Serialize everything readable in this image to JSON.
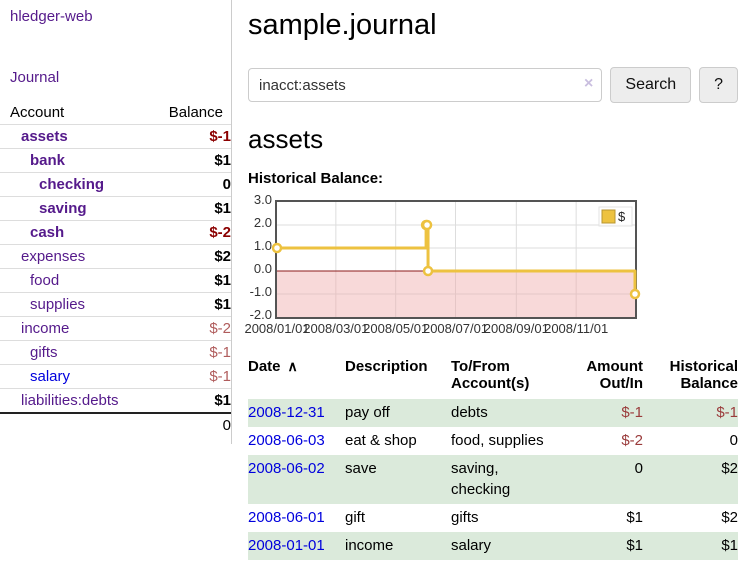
{
  "colors": {
    "link_purple": "#551a8b",
    "link_blue": "#0000dd",
    "negative_bold_red": "#8b0000",
    "negative_soft_red": "#b05c5c",
    "table_negative_red": "#9a3b3b",
    "row_stripe_green": "#dbeadb",
    "chart_series_yellow": "#edc240"
  },
  "sidebar": {
    "brand": "hledger-web",
    "nav_journal": "Journal",
    "accounts_table": {
      "headers": [
        "Account",
        "Balance"
      ],
      "rows": [
        {
          "name": "assets",
          "indent": 1,
          "bold": true,
          "balance": "$-1",
          "cls": "negb"
        },
        {
          "name": "bank",
          "indent": 2,
          "bold": true,
          "balance": "$1",
          "cls": "posb"
        },
        {
          "name": "checking",
          "indent": 3,
          "bold": true,
          "balance": "0",
          "cls": "posb"
        },
        {
          "name": "saving",
          "indent": 3,
          "bold": true,
          "balance": "$1",
          "cls": "posb"
        },
        {
          "name": "cash",
          "indent": 2,
          "bold": true,
          "balance": "$-2",
          "cls": "negb"
        },
        {
          "name": "expenses",
          "indent": 1,
          "bold": false,
          "balance": "$2",
          "cls": "posb"
        },
        {
          "name": "food",
          "indent": 2,
          "bold": false,
          "balance": "$1",
          "cls": "posb"
        },
        {
          "name": "supplies",
          "indent": 2,
          "bold": false,
          "balance": "$1",
          "cls": "posb"
        },
        {
          "name": "income",
          "indent": 1,
          "bold": false,
          "balance": "$-2",
          "cls": "neg"
        },
        {
          "name": "gifts",
          "indent": 2,
          "bold": false,
          "balance": "$-1",
          "cls": "neg"
        },
        {
          "name": "salary",
          "indent": 2,
          "bold": false,
          "blue": true,
          "balance": "$-1",
          "cls": "neg"
        },
        {
          "name": "liabilities:debts",
          "indent": 1,
          "bold": false,
          "balance": "$1",
          "cls": "posb"
        }
      ],
      "total": "0"
    }
  },
  "header": {
    "title": "sample.journal"
  },
  "search": {
    "value": "inacct:assets",
    "clear_icon": "×",
    "button_label": "Search",
    "help_label": "?"
  },
  "account_page": {
    "title": "assets",
    "chart_label": "Historical Balance:"
  },
  "chart_data": {
    "type": "line",
    "step": true,
    "title": "Historical Balance",
    "legend": {
      "position": "top-right"
    },
    "series": [
      {
        "name": "$",
        "color": "#edc240",
        "points": [
          {
            "x": "2008-01-01",
            "y": 1
          },
          {
            "x": "2008-06-01",
            "y": 2
          },
          {
            "x": "2008-06-02",
            "y": 2
          },
          {
            "x": "2008-06-03",
            "y": 0
          },
          {
            "x": "2008-12-31",
            "y": -1
          }
        ]
      }
    ],
    "x_range": [
      "2008-01-01",
      "2008-12-31"
    ],
    "ylim": [
      -2,
      3
    ],
    "y_ticks": [
      "3.0",
      "2.0",
      "1.0",
      "0.0",
      "-1.0",
      "-2.0"
    ],
    "x_ticks": [
      "2008/01/01",
      "2008/03/01",
      "2008/05/01",
      "2008/07/01",
      "2008/09/01",
      "2008/11/01"
    ],
    "grid": true,
    "negative_region_fill": "rgba(240,170,170,0.45)",
    "zero_line_color": "#8b1a1a",
    "plot_border_color": "#545454",
    "gridline_color": "#dddddd"
  },
  "register": {
    "sort_icon": "∧",
    "headers": [
      {
        "label": "Date",
        "align": "left"
      },
      {
        "label": "Description",
        "align": "left"
      },
      {
        "label": "To/From Account(s)",
        "align": "left"
      },
      {
        "label": "Amount Out/In",
        "align": "right"
      },
      {
        "label": "Historical Balance",
        "align": "right"
      }
    ],
    "rows": [
      {
        "date": "2008-12-31",
        "description": "pay off",
        "accounts": "debts",
        "amount": "$-1",
        "amount_cls": "tneg",
        "balance": "$-1",
        "balance_cls": "tneg",
        "shaded": true
      },
      {
        "date": "2008-06-03",
        "description": "eat & shop",
        "accounts": "food, supplies",
        "amount": "$-2",
        "amount_cls": "tneg",
        "balance": "0",
        "balance_cls": "",
        "shaded": false
      },
      {
        "date": "2008-06-02",
        "description": "save",
        "accounts": "saving, checking",
        "amount": "0",
        "amount_cls": "",
        "balance": "$2",
        "balance_cls": "",
        "shaded": true
      },
      {
        "date": "2008-06-01",
        "description": "gift",
        "accounts": "gifts",
        "amount": "$1",
        "amount_cls": "",
        "balance": "$2",
        "balance_cls": "",
        "shaded": false
      },
      {
        "date": "2008-01-01",
        "description": "income",
        "accounts": "salary",
        "amount": "$1",
        "amount_cls": "",
        "balance": "$1",
        "balance_cls": "",
        "shaded": true
      }
    ]
  }
}
